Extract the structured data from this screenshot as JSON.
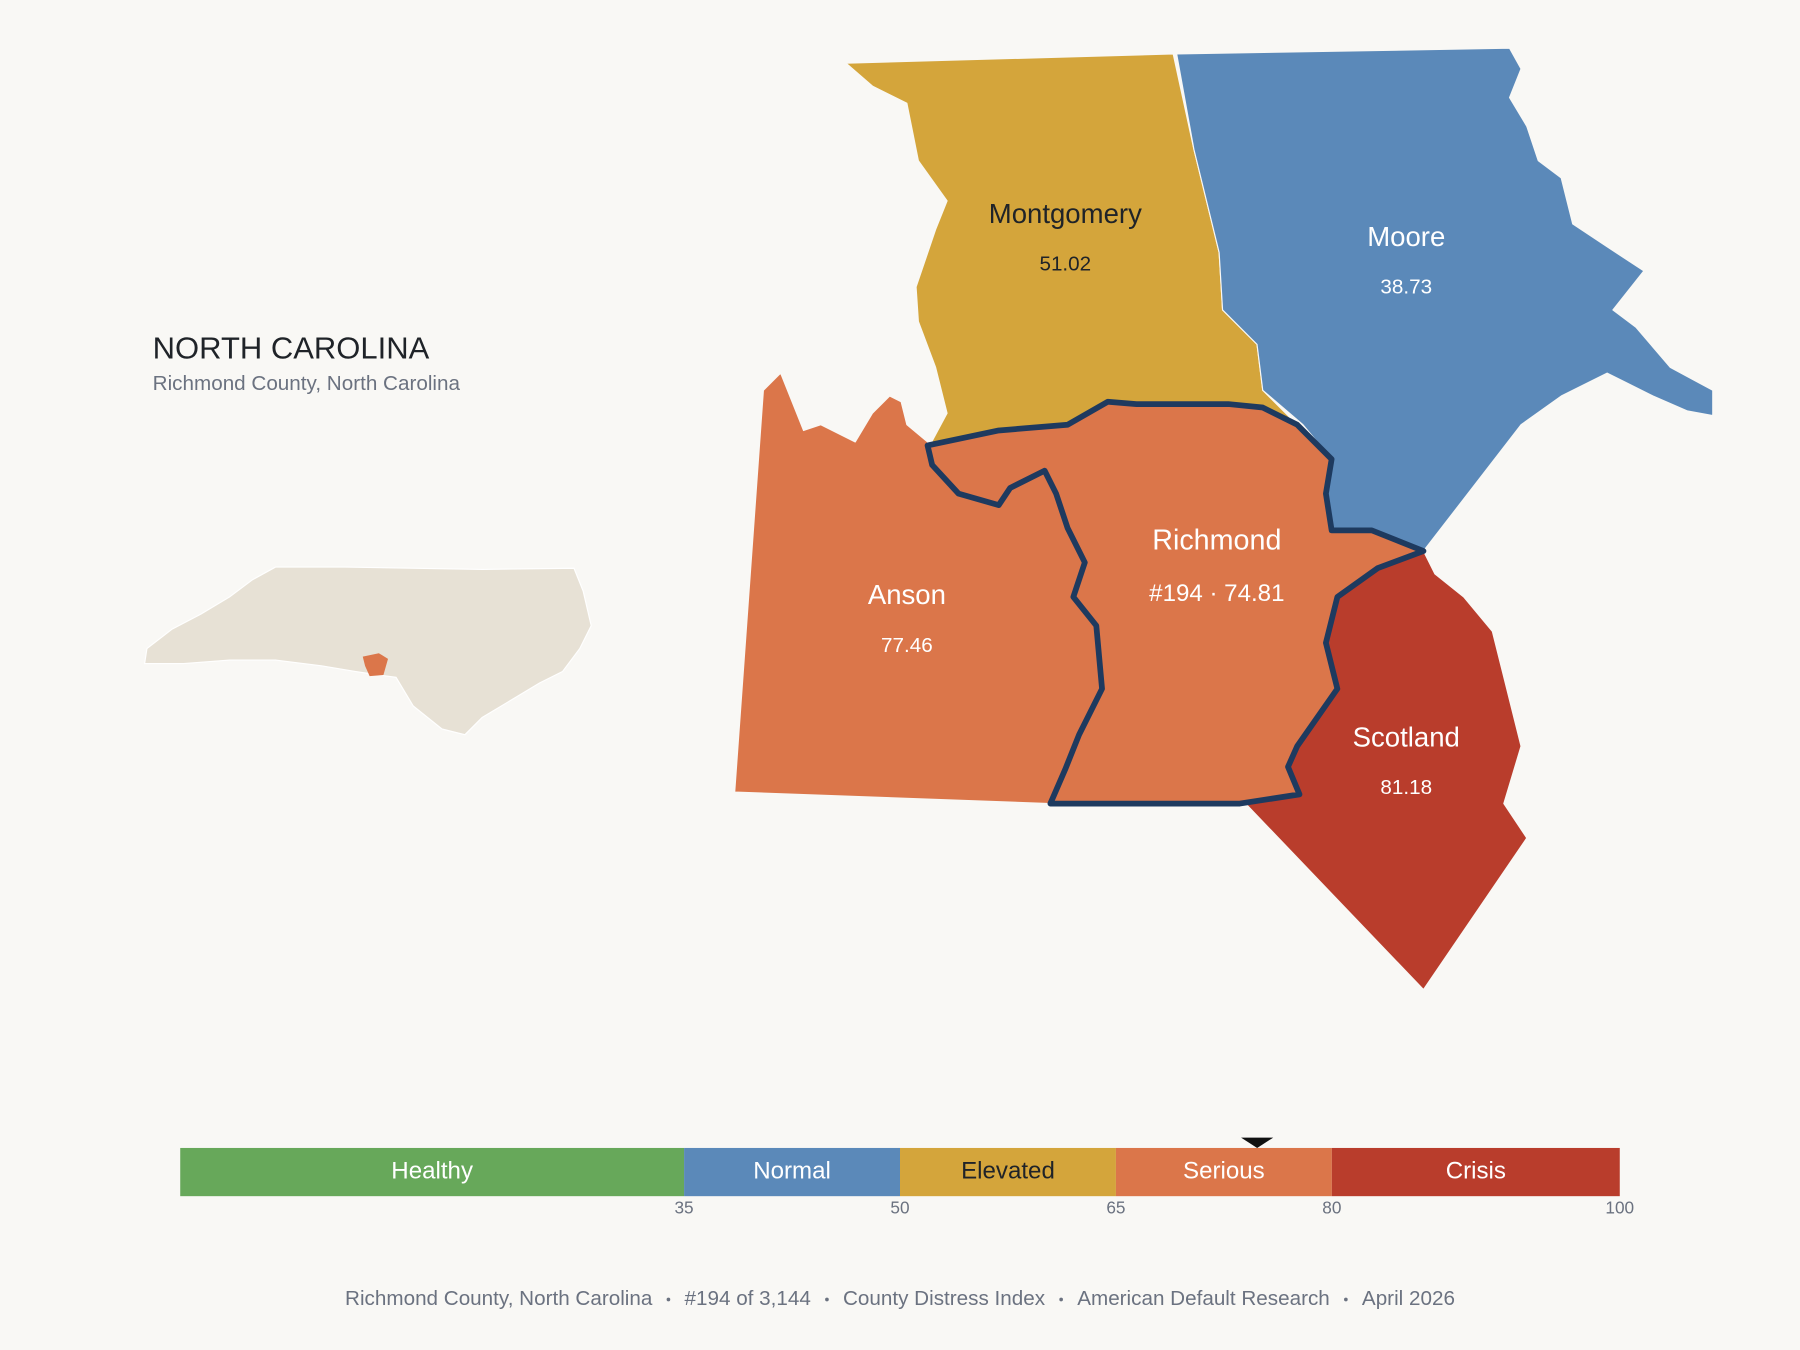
{
  "header": {
    "title": "NORTH CAROLINA",
    "subtitle": "Richmond County, North Carolina"
  },
  "counties": [
    {
      "name": "Montgomery",
      "value": 51.02
    },
    {
      "name": "Moore",
      "value": 38.73
    },
    {
      "name": "Anson",
      "value": 77.46
    },
    {
      "name": "Richmond",
      "value": 74.81,
      "value_label": "#194 · 74.81",
      "highlight": true
    },
    {
      "name": "Scotland",
      "value": 81.18
    }
  ],
  "legend": {
    "range": [
      0,
      100
    ],
    "ticks": [
      35,
      50,
      65,
      80,
      100
    ],
    "segments": [
      {
        "label": "Healthy",
        "color": "#67a85a"
      },
      {
        "label": "Normal",
        "color": "#5b89b9"
      },
      {
        "label": "Elevated",
        "color": "#d4a53b"
      },
      {
        "label": "Serious",
        "color": "#db764a"
      },
      {
        "label": "Crisis",
        "color": "#b93d2c"
      }
    ],
    "marker_value": 74.81
  },
  "footer": [
    "Richmond County, North Carolina",
    "#194 of 3,144",
    "County Distress Index",
    "American Default Research",
    "April 2026"
  ]
}
